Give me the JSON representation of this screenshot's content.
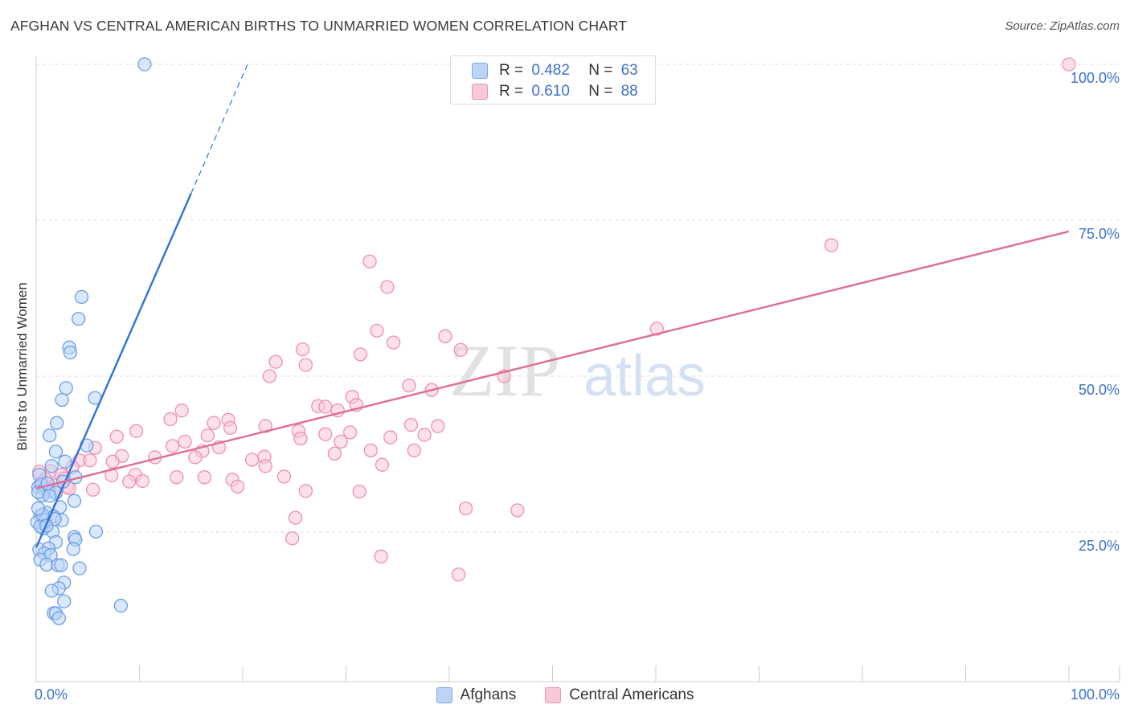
{
  "title": "AFGHAN VS CENTRAL AMERICAN BIRTHS TO UNMARRIED WOMEN CORRELATION CHART",
  "source": "Source: ZipAtlas.com",
  "watermark": {
    "zip": "ZIP",
    "atlas": "atlas"
  },
  "colors": {
    "blue_fill": "#bcd5f7",
    "blue_stroke": "#6d9ee6",
    "blue_line": "#2f72d6",
    "pink_fill": "#f9c9d9",
    "pink_stroke": "#ec8fb0",
    "pink_line": "#e06c97",
    "tick_label": "#3c72c8"
  },
  "stats": {
    "r_label": "R =",
    "n_label": "N =",
    "afghans": {
      "r": "0.482",
      "n": "63"
    },
    "central_americans": {
      "r": "0.610",
      "n": "88"
    }
  },
  "legend": {
    "afghans": "Afghans",
    "central_americans": "Central Americans"
  },
  "chart_data": {
    "type": "scatter",
    "ylabel": "Births to Unmarried Women",
    "xlabel": "",
    "xlim": [
      0,
      100
    ],
    "ylim": [
      0,
      103
    ],
    "x_tick_labels": [
      {
        "x": 0,
        "label": "0.0%"
      },
      {
        "x": 100,
        "label": "100.0%"
      }
    ],
    "y_tick_labels": [
      {
        "y": 25,
        "label": "25.0%"
      },
      {
        "y": 50,
        "label": "50.0%"
      },
      {
        "y": 75,
        "label": "75.0%"
      },
      {
        "y": 100,
        "label": "100.0%"
      }
    ],
    "y_gridlines": [
      25,
      50,
      75,
      100
    ],
    "x_ticks": [
      0,
      10,
      20,
      30,
      40,
      50,
      60,
      70,
      80,
      90,
      100
    ],
    "series": [
      {
        "name": "Afghans",
        "color": "blue",
        "regression": {
          "x0": 0,
          "y0": 22.5,
          "x1": 15.0,
          "y1": 79.3,
          "dash_x1": 20.6,
          "dash_y1": 100.5
        },
        "points": [
          [
            10.5,
            100.0
          ],
          [
            4.4,
            62.7
          ],
          [
            4.1,
            59.2
          ],
          [
            3.2,
            54.6
          ],
          [
            3.3,
            53.8
          ],
          [
            2.9,
            48.1
          ],
          [
            5.7,
            46.5
          ],
          [
            2.5,
            46.2
          ],
          [
            2.0,
            42.5
          ],
          [
            1.3,
            40.5
          ],
          [
            4.9,
            38.9
          ],
          [
            1.9,
            37.9
          ],
          [
            0.3,
            34.2
          ],
          [
            1.5,
            35.6
          ],
          [
            2.8,
            36.3
          ],
          [
            3.8,
            33.8
          ],
          [
            0.2,
            32.2
          ],
          [
            0.8,
            31.9
          ],
          [
            1.2,
            31.5
          ],
          [
            0.6,
            30.9
          ],
          [
            1.9,
            31.3
          ],
          [
            3.7,
            30.0
          ],
          [
            2.3,
            29.0
          ],
          [
            1.0,
            28.1
          ],
          [
            0.4,
            27.6
          ],
          [
            1.7,
            27.5
          ],
          [
            0.1,
            26.6
          ],
          [
            0.9,
            26.9
          ],
          [
            2.5,
            26.9
          ],
          [
            0.7,
            25.6
          ],
          [
            1.6,
            25.1
          ],
          [
            5.8,
            25.1
          ],
          [
            0.3,
            22.2
          ],
          [
            3.7,
            24.2
          ],
          [
            3.8,
            23.8
          ],
          [
            1.9,
            23.4
          ],
          [
            3.6,
            22.3
          ],
          [
            1.2,
            22.4
          ],
          [
            0.8,
            21.6
          ],
          [
            1.4,
            21.3
          ],
          [
            0.4,
            20.6
          ],
          [
            1.0,
            19.8
          ],
          [
            2.1,
            19.7
          ],
          [
            2.4,
            19.7
          ],
          [
            4.2,
            19.2
          ],
          [
            2.7,
            16.9
          ],
          [
            2.2,
            16.0
          ],
          [
            1.5,
            15.6
          ],
          [
            2.7,
            13.9
          ],
          [
            8.2,
            13.2
          ],
          [
            1.7,
            12.0
          ],
          [
            1.9,
            12.0
          ],
          [
            2.2,
            11.2
          ],
          [
            0.5,
            32.6
          ],
          [
            1.1,
            32.8
          ],
          [
            0.2,
            31.4
          ],
          [
            0.6,
            27.8
          ],
          [
            0.2,
            28.8
          ],
          [
            1.3,
            30.8
          ],
          [
            2.6,
            33.1
          ],
          [
            0.4,
            25.9
          ],
          [
            1.8,
            27.1
          ],
          [
            1.0,
            26.0
          ]
        ]
      },
      {
        "name": "Central Americans",
        "color": "pink",
        "regression": {
          "x0": 0,
          "y0": 32.0,
          "x1": 100,
          "y1": 73.2
        },
        "points": [
          [
            100.0,
            100.0
          ],
          [
            77.0,
            71.0
          ],
          [
            32.3,
            68.4
          ],
          [
            34.0,
            64.3
          ],
          [
            60.1,
            57.6
          ],
          [
            33.0,
            57.3
          ],
          [
            39.6,
            56.4
          ],
          [
            34.6,
            55.4
          ],
          [
            25.8,
            54.3
          ],
          [
            41.1,
            54.2
          ],
          [
            31.4,
            53.5
          ],
          [
            23.2,
            52.3
          ],
          [
            26.1,
            51.8
          ],
          [
            22.6,
            50.0
          ],
          [
            45.3,
            50.0
          ],
          [
            36.1,
            48.5
          ],
          [
            38.3,
            47.8
          ],
          [
            30.6,
            46.7
          ],
          [
            27.3,
            45.2
          ],
          [
            28.0,
            45.1
          ],
          [
            31.0,
            45.4
          ],
          [
            29.2,
            44.5
          ],
          [
            14.1,
            44.5
          ],
          [
            18.6,
            43.0
          ],
          [
            13.0,
            43.1
          ],
          [
            22.2,
            42.0
          ],
          [
            36.3,
            42.2
          ],
          [
            38.9,
            42.0
          ],
          [
            30.4,
            41.0
          ],
          [
            17.2,
            42.5
          ],
          [
            18.8,
            41.7
          ],
          [
            25.4,
            41.2
          ],
          [
            9.7,
            41.2
          ],
          [
            28.0,
            40.7
          ],
          [
            16.6,
            40.5
          ],
          [
            34.3,
            40.2
          ],
          [
            37.6,
            40.6
          ],
          [
            25.6,
            40.0
          ],
          [
            7.8,
            40.3
          ],
          [
            14.4,
            39.5
          ],
          [
            13.2,
            38.8
          ],
          [
            17.7,
            38.6
          ],
          [
            29.5,
            39.5
          ],
          [
            36.6,
            38.1
          ],
          [
            32.4,
            38.1
          ],
          [
            16.1,
            38.0
          ],
          [
            5.7,
            38.5
          ],
          [
            28.9,
            37.6
          ],
          [
            11.5,
            37.0
          ],
          [
            15.4,
            37.0
          ],
          [
            8.3,
            37.2
          ],
          [
            22.1,
            37.1
          ],
          [
            4.2,
            36.5
          ],
          [
            20.9,
            36.6
          ],
          [
            33.5,
            35.8
          ],
          [
            22.2,
            35.6
          ],
          [
            3.5,
            35.4
          ],
          [
            5.2,
            36.5
          ],
          [
            7.4,
            36.3
          ],
          [
            1.4,
            34.8
          ],
          [
            0.3,
            34.7
          ],
          [
            2.4,
            34.2
          ],
          [
            9.6,
            34.2
          ],
          [
            16.3,
            33.8
          ],
          [
            13.6,
            33.8
          ],
          [
            2.7,
            33.6
          ],
          [
            7.3,
            34.1
          ],
          [
            0.9,
            33.5
          ],
          [
            24.0,
            33.9
          ],
          [
            19.0,
            33.4
          ],
          [
            9.0,
            33.1
          ],
          [
            10.3,
            33.2
          ],
          [
            1.8,
            32.5
          ],
          [
            0.5,
            33.0
          ],
          [
            3.0,
            32.3
          ],
          [
            19.5,
            32.3
          ],
          [
            31.3,
            31.5
          ],
          [
            2.0,
            31.8
          ],
          [
            1.2,
            31.9
          ],
          [
            26.1,
            31.6
          ],
          [
            41.6,
            28.8
          ],
          [
            46.6,
            28.5
          ],
          [
            25.1,
            27.3
          ],
          [
            24.8,
            24.0
          ],
          [
            33.4,
            21.1
          ],
          [
            40.9,
            18.2
          ],
          [
            3.2,
            32.0
          ],
          [
            5.5,
            31.8
          ]
        ]
      }
    ]
  }
}
